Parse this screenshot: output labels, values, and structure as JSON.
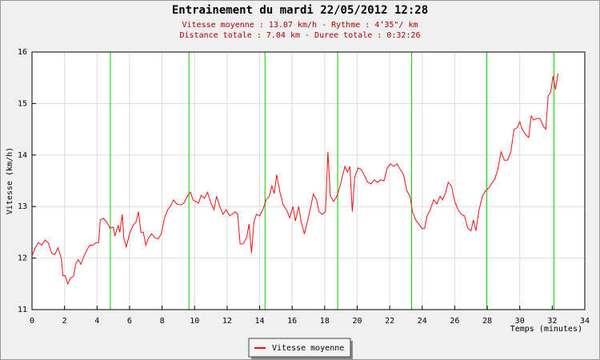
{
  "chart_data": {
    "type": "line",
    "title": "Entrainement du mardi 22/05/2012 12:28",
    "subtitle": [
      "Vitesse moyenne : 13.07 km/h - Rythme : 4’35\"/ km",
      "Distance totale : 7.04 km - Duree totale : 0:32:26"
    ],
    "xlabel": "Temps (minutes)",
    "ylabel": "Vitesse (km/h)",
    "xlim": [
      0,
      34
    ],
    "ylim": [
      11,
      16
    ],
    "xticks": [
      0,
      2,
      4,
      6,
      8,
      10,
      12,
      14,
      16,
      18,
      20,
      22,
      24,
      26,
      28,
      30,
      32,
      34
    ],
    "yticks": [
      11,
      12,
      13,
      14,
      15,
      16
    ],
    "grid": true,
    "legend": "bottom",
    "markers": {
      "color": "#00cc00",
      "x": [
        4.82,
        9.65,
        14.33,
        18.8,
        23.35,
        27.96,
        32.1
      ]
    },
    "x": [
      0,
      0.2,
      0.4,
      0.6,
      0.8,
      1.0,
      1.2,
      1.4,
      1.6,
      1.8,
      1.9,
      2.05,
      2.2,
      2.35,
      2.55,
      2.7,
      2.85,
      3.0,
      3.2,
      3.4,
      3.55,
      3.75,
      3.95,
      4.1,
      4.2,
      4.4,
      4.6,
      4.8,
      5.0,
      5.1,
      5.3,
      5.4,
      5.55,
      5.65,
      5.8,
      6.0,
      6.2,
      6.4,
      6.55,
      6.7,
      6.85,
      7.0,
      7.15,
      7.35,
      7.55,
      7.75,
      7.95,
      8.15,
      8.35,
      8.5,
      8.7,
      8.9,
      9.15,
      9.35,
      9.55,
      9.75,
      9.9,
      10.05,
      10.25,
      10.4,
      10.6,
      10.8,
      11.0,
      11.2,
      11.35,
      11.55,
      11.75,
      11.95,
      12.15,
      12.3,
      12.5,
      12.65,
      12.8,
      13.0,
      13.2,
      13.35,
      13.5,
      13.65,
      13.8,
      14.0,
      14.2,
      14.4,
      14.6,
      14.75,
      14.9,
      15.05,
      15.25,
      15.45,
      15.65,
      15.85,
      16.05,
      16.2,
      16.4,
      16.55,
      16.75,
      16.95,
      17.15,
      17.3,
      17.5,
      17.65,
      17.85,
      18.05,
      18.2,
      18.35,
      18.55,
      18.75,
      18.95,
      19.1,
      19.25,
      19.4,
      19.55,
      19.7,
      19.85,
      20.05,
      20.25,
      20.45,
      20.65,
      20.85,
      21.05,
      21.25,
      21.45,
      21.65,
      21.85,
      22.05,
      22.25,
      22.45,
      22.65,
      22.85,
      23.05,
      23.25,
      23.4,
      23.6,
      23.8,
      24.0,
      24.15,
      24.3,
      24.5,
      24.7,
      24.9,
      25.1,
      25.25,
      25.45,
      25.6,
      25.8,
      26.0,
      26.2,
      26.4,
      26.6,
      26.8,
      27.0,
      27.15,
      27.3,
      27.5,
      27.7,
      27.9,
      28.1,
      28.25,
      28.45,
      28.65,
      28.85,
      29.05,
      29.25,
      29.45,
      29.65,
      29.85,
      30.0,
      30.15,
      30.35,
      30.55,
      30.7,
      30.85,
      31.05,
      31.25,
      31.45,
      31.6,
      31.75,
      31.9,
      32.05,
      32.2,
      32.35
    ],
    "series": [
      {
        "name": "Vitesse moyenne",
        "color": "#ee1111",
        "values": [
          12.04,
          12.2,
          12.3,
          12.25,
          12.35,
          12.3,
          12.1,
          12.07,
          12.2,
          12.0,
          11.66,
          11.66,
          11.5,
          11.6,
          11.65,
          11.9,
          11.97,
          11.88,
          12.04,
          12.17,
          12.25,
          12.25,
          12.3,
          12.3,
          12.74,
          12.77,
          12.7,
          12.58,
          12.6,
          12.43,
          12.63,
          12.5,
          12.85,
          12.38,
          12.22,
          12.47,
          12.63,
          12.7,
          12.9,
          12.5,
          12.5,
          12.25,
          12.38,
          12.47,
          12.4,
          12.37,
          12.47,
          12.78,
          12.94,
          13.0,
          13.13,
          13.05,
          13.03,
          13.07,
          13.2,
          13.28,
          13.13,
          13.1,
          13.07,
          13.22,
          13.16,
          13.28,
          13.07,
          12.94,
          13.2,
          13.0,
          12.85,
          12.94,
          12.82,
          12.85,
          12.9,
          12.85,
          12.27,
          12.28,
          12.4,
          12.66,
          12.1,
          12.7,
          12.85,
          12.82,
          12.94,
          13.13,
          13.2,
          13.4,
          13.25,
          13.62,
          13.28,
          13.03,
          12.94,
          12.78,
          13.0,
          12.72,
          13.0,
          12.72,
          12.47,
          12.72,
          13.0,
          13.24,
          13.13,
          12.9,
          12.85,
          12.9,
          14.06,
          13.2,
          13.1,
          13.2,
          13.4,
          13.6,
          13.78,
          13.67,
          13.78,
          12.9,
          13.57,
          13.75,
          13.72,
          13.6,
          13.47,
          13.44,
          13.52,
          13.47,
          13.52,
          13.5,
          13.75,
          13.83,
          13.78,
          13.83,
          13.72,
          13.62,
          13.31,
          13.2,
          12.9,
          12.74,
          12.66,
          12.57,
          12.58,
          12.82,
          12.94,
          13.13,
          13.05,
          13.2,
          13.13,
          13.28,
          13.47,
          13.4,
          13.1,
          12.94,
          12.85,
          12.82,
          12.58,
          12.53,
          12.74,
          12.53,
          12.94,
          13.2,
          13.31,
          13.36,
          13.44,
          13.52,
          13.72,
          14.06,
          13.9,
          13.9,
          14.06,
          14.5,
          14.53,
          14.65,
          14.5,
          14.4,
          14.34,
          14.76,
          14.68,
          14.71,
          14.71,
          14.56,
          14.5,
          15.15,
          15.22,
          15.53,
          15.27,
          15.58
        ]
      }
    ]
  }
}
